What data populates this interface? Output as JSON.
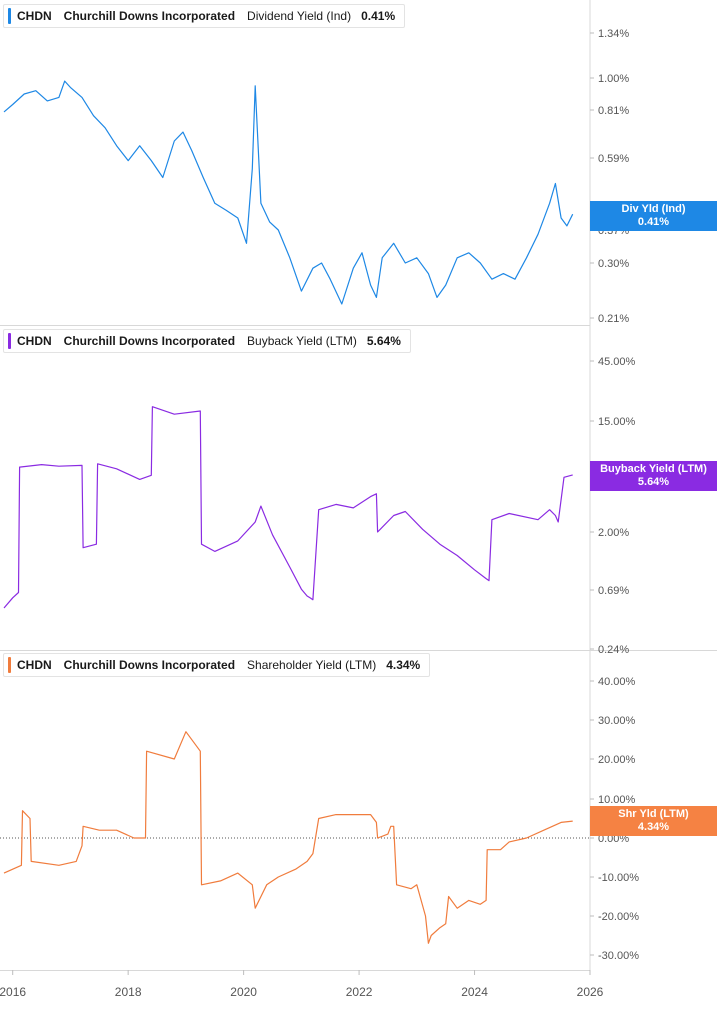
{
  "chart_data": [
    {
      "type": "line",
      "ticker": "CHDN",
      "company": "Churchill Downs Incorporated",
      "metric": "Dividend Yield (Ind)",
      "current_value": "0.41%",
      "end_label": [
        "Div Yld (Ind)",
        "0.41%"
      ],
      "color": "#1e88e5",
      "y_scale": "log",
      "y_ticks": [
        "1.34%",
        "1.00%",
        "0.81%",
        "0.59%",
        "0.37%",
        "0.30%",
        "0.21%"
      ],
      "y_tick_values": [
        1.34,
        1.0,
        0.81,
        0.59,
        0.37,
        0.3,
        0.21
      ],
      "series": [
        {
          "x": [
            2015.85,
            2016.0,
            2016.2,
            2016.4,
            2016.6,
            2016.8,
            2016.9,
            2017.0,
            2017.2,
            2017.4,
            2017.6,
            2017.8,
            2018.0,
            2018.2,
            2018.4,
            2018.6,
            2018.8,
            2018.95,
            2019.1,
            2019.3,
            2019.5,
            2019.7,
            2019.9,
            2020.05,
            2020.15,
            2020.2,
            2020.3,
            2020.45,
            2020.6,
            2020.8,
            2021.0,
            2021.2,
            2021.35,
            2021.5,
            2021.7,
            2021.9,
            2022.05,
            2022.2,
            2022.3,
            2022.4,
            2022.6,
            2022.8,
            2023.0,
            2023.2,
            2023.35,
            2023.5,
            2023.7,
            2023.9,
            2024.1,
            2024.3,
            2024.5,
            2024.7,
            2024.9,
            2025.1,
            2025.3,
            2025.4,
            2025.5,
            2025.6,
            2025.7
          ],
          "y": [
            0.8,
            0.84,
            0.9,
            0.92,
            0.86,
            0.88,
            0.98,
            0.94,
            0.88,
            0.78,
            0.72,
            0.64,
            0.58,
            0.64,
            0.58,
            0.52,
            0.66,
            0.7,
            0.62,
            0.52,
            0.44,
            0.42,
            0.4,
            0.34,
            0.55,
            0.95,
            0.44,
            0.39,
            0.37,
            0.31,
            0.25,
            0.29,
            0.3,
            0.27,
            0.23,
            0.29,
            0.32,
            0.26,
            0.24,
            0.31,
            0.34,
            0.3,
            0.31,
            0.28,
            0.24,
            0.26,
            0.31,
            0.32,
            0.3,
            0.27,
            0.28,
            0.27,
            0.31,
            0.36,
            0.44,
            0.5,
            0.4,
            0.38,
            0.41
          ]
        }
      ]
    },
    {
      "type": "line",
      "ticker": "CHDN",
      "company": "Churchill Downs Incorporated",
      "metric": "Buyback Yield (LTM)",
      "current_value": "5.64%",
      "end_label": [
        "Buyback Yield (LTM)",
        "5.64%"
      ],
      "color": "#8a2be2",
      "y_scale": "log",
      "y_ticks": [
        "45.00%",
        "15.00%",
        "2.00%",
        "0.69%",
        "0.24%"
      ],
      "y_tick_values": [
        45,
        15,
        2,
        0.69,
        0.24
      ],
      "series": [
        {
          "x": [
            2015.85,
            2016.0,
            2016.1,
            2016.12,
            2016.5,
            2016.8,
            2017.2,
            2017.22,
            2017.45,
            2017.47,
            2017.8,
            2018.2,
            2018.4,
            2018.42,
            2018.8,
            2019.25,
            2019.27,
            2019.5,
            2019.9,
            2020.2,
            2020.3,
            2020.5,
            2020.8,
            2021.0,
            2021.1,
            2021.15,
            2021.2,
            2021.3,
            2021.6,
            2021.9,
            2022.2,
            2022.3,
            2022.32,
            2022.6,
            2022.8,
            2023.1,
            2023.4,
            2023.7,
            2024.0,
            2024.2,
            2024.25,
            2024.3,
            2024.6,
            2025.1,
            2025.3,
            2025.4,
            2025.45,
            2025.55,
            2025.7
          ],
          "y": [
            0.5,
            0.6,
            0.66,
            6.5,
            6.8,
            6.6,
            6.7,
            1.5,
            1.6,
            6.9,
            6.3,
            5.2,
            5.6,
            19.5,
            17.0,
            18.0,
            1.6,
            1.4,
            1.7,
            2.4,
            3.2,
            1.9,
            1.05,
            0.7,
            0.62,
            0.6,
            0.58,
            3.0,
            3.3,
            3.1,
            3.8,
            4.0,
            2.0,
            2.7,
            2.9,
            2.1,
            1.6,
            1.3,
            1.0,
            0.85,
            0.82,
            2.5,
            2.8,
            2.5,
            3.0,
            2.7,
            2.4,
            5.4,
            5.64
          ]
        }
      ]
    },
    {
      "type": "line",
      "ticker": "CHDN",
      "company": "Churchill Downs Incorporated",
      "metric": "Shareholder Yield (LTM)",
      "current_value": "4.34%",
      "end_label": [
        "Shr Yld (LTM)",
        "4.34%"
      ],
      "color": "#f07c3d",
      "y_scale": "linear",
      "y_ticks": [
        "40.00%",
        "30.00%",
        "20.00%",
        "10.00%",
        "0.00%",
        "-10.00%",
        "-20.00%",
        "-30.00%"
      ],
      "y_tick_values": [
        40,
        30,
        20,
        10,
        0,
        -10,
        -20,
        -30
      ],
      "zero_line": true,
      "series": [
        {
          "x": [
            2015.85,
            2016.0,
            2016.15,
            2016.17,
            2016.3,
            2016.32,
            2016.8,
            2017.1,
            2017.2,
            2017.22,
            2017.5,
            2017.8,
            2018.1,
            2018.3,
            2018.32,
            2018.8,
            2019.0,
            2019.25,
            2019.27,
            2019.6,
            2019.9,
            2020.15,
            2020.2,
            2020.4,
            2020.6,
            2020.9,
            2021.1,
            2021.2,
            2021.3,
            2021.6,
            2021.9,
            2022.2,
            2022.3,
            2022.32,
            2022.5,
            2022.55,
            2022.6,
            2022.65,
            2022.9,
            2023.0,
            2023.15,
            2023.2,
            2023.25,
            2023.4,
            2023.5,
            2023.55,
            2023.7,
            2023.9,
            2024.1,
            2024.2,
            2024.22,
            2024.45,
            2024.6,
            2024.9,
            2025.2,
            2025.5,
            2025.7
          ],
          "y": [
            -9,
            -8,
            -7,
            7,
            5,
            -6,
            -7,
            -6,
            -2,
            3,
            2,
            2,
            0,
            0,
            22,
            20,
            27,
            22,
            -12,
            -11,
            -9,
            -12,
            -18,
            -12,
            -10,
            -8,
            -6,
            -4,
            5,
            6,
            6,
            6,
            4,
            0,
            1,
            3,
            3,
            -12,
            -13,
            -12,
            -20,
            -27,
            -25,
            -23,
            -22,
            -15,
            -18,
            -16,
            -17,
            -16,
            -3,
            -3,
            -1,
            0,
            2,
            4,
            4.34
          ]
        }
      ]
    }
  ],
  "x_axis": {
    "ticks": [
      "2016",
      "2018",
      "2020",
      "2022",
      "2024",
      "2026"
    ],
    "range": [
      2015.78,
      2026.0
    ]
  }
}
